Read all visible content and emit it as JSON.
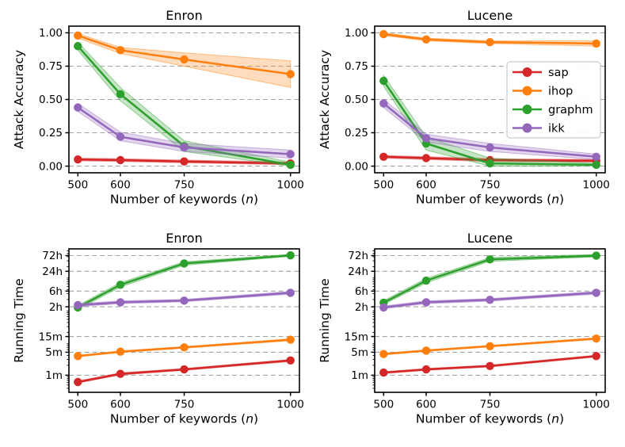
{
  "figure": {
    "background": "#ffffff",
    "grid_color": "#a3a3a3",
    "spine_color": "#000000",
    "text_color": "#000000",
    "band_opacity": 0.27
  },
  "legend": {
    "position": "inside-top-right-plot",
    "entries": [
      {
        "label": "sap",
        "color": "#d62728"
      },
      {
        "label": "ihop",
        "color": "#ff7f0e"
      },
      {
        "label": "graphm",
        "color": "#2ca02c"
      },
      {
        "label": "ikk",
        "color": "#9467bd"
      }
    ]
  },
  "chart_data": [
    {
      "id": "accuracy-enron",
      "type": "line",
      "title": "Enron",
      "xlabel": "Number of keywords (n)",
      "ylabel": "Attack Accuracy",
      "x": [
        500,
        600,
        750,
        1000
      ],
      "xtick_labels": [
        "500",
        "600",
        "750",
        "1000"
      ],
      "xlim": [
        479,
        1021
      ],
      "yscale": "linear",
      "ylim": [
        -0.05,
        1.05
      ],
      "yticks": [
        0,
        0.25,
        0.5,
        0.75,
        1.0
      ],
      "ytick_labels": [
        "0.00",
        "0.25",
        "0.50",
        "0.75",
        "1.00"
      ],
      "grid": "horizontal-dashed",
      "show_legend": false,
      "series": [
        {
          "name": "sap",
          "color": "#d62728",
          "values": [
            0.05,
            0.045,
            0.035,
            0.02
          ],
          "lo": [
            0.04,
            0.035,
            0.025,
            0.01
          ],
          "hi": [
            0.06,
            0.055,
            0.045,
            0.03
          ]
        },
        {
          "name": "ihop",
          "color": "#ff7f0e",
          "values": [
            0.98,
            0.87,
            0.8,
            0.69
          ],
          "lo": [
            0.96,
            0.845,
            0.75,
            0.59
          ],
          "hi": [
            0.995,
            0.89,
            0.85,
            0.79
          ]
        },
        {
          "name": "graphm",
          "color": "#2ca02c",
          "values": [
            0.9,
            0.54,
            0.15,
            0.01
          ],
          "lo": [
            0.87,
            0.49,
            0.11,
            0.0
          ],
          "hi": [
            0.93,
            0.59,
            0.19,
            0.03
          ]
        },
        {
          "name": "ikk",
          "color": "#9467bd",
          "values": [
            0.44,
            0.22,
            0.14,
            0.09
          ],
          "lo": [
            0.41,
            0.19,
            0.11,
            0.06
          ],
          "hi": [
            0.47,
            0.255,
            0.17,
            0.12
          ]
        }
      ]
    },
    {
      "id": "accuracy-lucene",
      "type": "line",
      "title": "Lucene",
      "xlabel": "Number of keywords (n)",
      "ylabel": "Attack Accuracy",
      "x": [
        500,
        600,
        750,
        1000
      ],
      "xtick_labels": [
        "500",
        "600",
        "750",
        "1000"
      ],
      "xlim": [
        479,
        1021
      ],
      "yscale": "linear",
      "ylim": [
        -0.05,
        1.05
      ],
      "yticks": [
        0,
        0.25,
        0.5,
        0.75,
        1.0
      ],
      "ytick_labels": [
        "0.00",
        "0.25",
        "0.50",
        "0.75",
        "1.00"
      ],
      "grid": "horizontal-dashed",
      "show_legend": true,
      "series": [
        {
          "name": "sap",
          "color": "#d62728",
          "values": [
            0.07,
            0.06,
            0.045,
            0.04
          ],
          "lo": [
            0.06,
            0.05,
            0.035,
            0.03
          ],
          "hi": [
            0.08,
            0.07,
            0.055,
            0.05
          ]
        },
        {
          "name": "ihop",
          "color": "#ff7f0e",
          "values": [
            0.99,
            0.95,
            0.93,
            0.92
          ],
          "lo": [
            0.98,
            0.94,
            0.92,
            0.9
          ],
          "hi": [
            1.0,
            0.96,
            0.94,
            0.94
          ]
        },
        {
          "name": "graphm",
          "color": "#2ca02c",
          "values": [
            0.64,
            0.17,
            0.02,
            0.01
          ],
          "lo": [
            0.6,
            0.12,
            0.0,
            0.0
          ],
          "hi": [
            0.68,
            0.22,
            0.06,
            0.02
          ]
        },
        {
          "name": "ikk",
          "color": "#9467bd",
          "values": [
            0.47,
            0.21,
            0.14,
            0.07
          ],
          "lo": [
            0.44,
            0.18,
            0.11,
            0.05
          ],
          "hi": [
            0.5,
            0.24,
            0.17,
            0.09
          ]
        }
      ]
    },
    {
      "id": "runtime-enron",
      "type": "line",
      "title": "Enron",
      "xlabel": "Number of keywords (n)",
      "ylabel": "Running Time",
      "y_unit": "minutes",
      "x": [
        500,
        600,
        750,
        1000
      ],
      "xtick_labels": [
        "500",
        "600",
        "750",
        "1000"
      ],
      "xlim": [
        479,
        1021
      ],
      "yscale": "log",
      "ylim_log": [
        -0.52,
        3.84
      ],
      "yticks": [
        1,
        5,
        15,
        120,
        360,
        1440,
        4320
      ],
      "ytick_labels": [
        "1m",
        "5m",
        "15m",
        "2h",
        "6h",
        "24h",
        "72h"
      ],
      "grid": "horizontal-dashed",
      "show_legend": false,
      "series": [
        {
          "name": "sap",
          "color": "#d62728",
          "values": [
            0.62,
            1.1,
            1.5,
            2.8
          ],
          "lo": [
            0.58,
            1.02,
            1.4,
            2.6
          ],
          "hi": [
            0.67,
            1.18,
            1.6,
            3.0
          ]
        },
        {
          "name": "ihop",
          "color": "#ff7f0e",
          "values": [
            3.8,
            5.2,
            7.0,
            12.0
          ],
          "lo": [
            3.6,
            4.9,
            6.6,
            11.2
          ],
          "hi": [
            4.0,
            5.5,
            7.4,
            12.8
          ]
        },
        {
          "name": "graphm",
          "color": "#2ca02c",
          "values": [
            115,
            560,
            2500,
            4400
          ],
          "lo": [
            100,
            480,
            2200,
            4100
          ],
          "hi": [
            132,
            650,
            2820,
            4720
          ]
        },
        {
          "name": "ikk",
          "color": "#9467bd",
          "values": [
            135,
            165,
            185,
            320
          ],
          "lo": [
            122,
            150,
            170,
            292
          ],
          "hi": [
            149,
            182,
            202,
            350
          ]
        }
      ]
    },
    {
      "id": "runtime-lucene",
      "type": "line",
      "title": "Lucene",
      "xlabel": "Number of keywords (n)",
      "ylabel": "Running Time",
      "y_unit": "minutes",
      "x": [
        500,
        600,
        750,
        1000
      ],
      "xtick_labels": [
        "500",
        "600",
        "750",
        "1000"
      ],
      "xlim": [
        479,
        1021
      ],
      "yscale": "log",
      "ylim_log": [
        -0.52,
        3.84
      ],
      "yticks": [
        1,
        5,
        15,
        120,
        360,
        1440,
        4320
      ],
      "ytick_labels": [
        "1m",
        "5m",
        "15m",
        "2h",
        "6h",
        "24h",
        "72h"
      ],
      "grid": "horizontal-dashed",
      "show_legend": false,
      "series": [
        {
          "name": "sap",
          "color": "#d62728",
          "values": [
            1.2,
            1.5,
            1.9,
            3.8
          ],
          "lo": [
            1.12,
            1.4,
            1.78,
            3.55
          ],
          "hi": [
            1.28,
            1.6,
            2.02,
            4.05
          ]
        },
        {
          "name": "ihop",
          "color": "#ff7f0e",
          "values": [
            4.4,
            5.6,
            7.6,
            13.0
          ],
          "lo": [
            4.15,
            5.3,
            7.2,
            12.2
          ],
          "hi": [
            4.65,
            5.9,
            8.0,
            13.8
          ]
        },
        {
          "name": "graphm",
          "color": "#2ca02c",
          "values": [
            160,
            750,
            3300,
            4300
          ],
          "lo": [
            140,
            640,
            2900,
            3950
          ],
          "hi": [
            183,
            875,
            3750,
            4680
          ]
        },
        {
          "name": "ikk",
          "color": "#9467bd",
          "values": [
            115,
            165,
            195,
            320
          ],
          "lo": [
            104,
            150,
            178,
            292
          ],
          "hi": [
            127,
            182,
            214,
            350
          ]
        }
      ]
    }
  ]
}
